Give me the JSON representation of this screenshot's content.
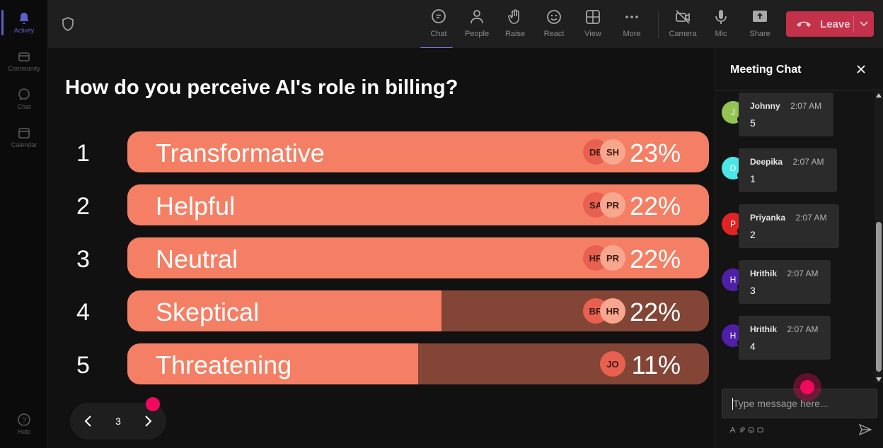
{
  "rail": {
    "items": [
      {
        "label": "Activity",
        "icon": "bell-icon"
      },
      {
        "label": "Community",
        "icon": "community-icon"
      },
      {
        "label": "Chat",
        "icon": "chat-icon"
      },
      {
        "label": "Calendar",
        "icon": "calendar-icon"
      }
    ],
    "help_label": "Help"
  },
  "toolbar": {
    "buttons": [
      {
        "label": "Chat",
        "icon": "chat-icon"
      },
      {
        "label": "People",
        "icon": "people-icon"
      },
      {
        "label": "Raise",
        "icon": "raise-hand-icon"
      },
      {
        "label": "React",
        "icon": "react-icon"
      },
      {
        "label": "View",
        "icon": "view-icon"
      },
      {
        "label": "More",
        "icon": "more-icon"
      },
      {
        "label": "Camera",
        "icon": "camera-off-icon"
      },
      {
        "label": "Mic",
        "icon": "mic-icon"
      },
      {
        "label": "Share",
        "icon": "share-icon"
      }
    ],
    "leave_label": "Leave"
  },
  "poll": {
    "question": "How do you perceive AI's role in billing?",
    "options": [
      {
        "num": "1",
        "label": "Transformative",
        "percent": "23%",
        "fill": 1.0,
        "avatars": [
          "DE",
          "SH"
        ]
      },
      {
        "num": "2",
        "label": "Helpful",
        "percent": "22%",
        "fill": 1.0,
        "avatars": [
          "SA",
          "PR"
        ]
      },
      {
        "num": "3",
        "label": "Neutral",
        "percent": "22%",
        "fill": 1.0,
        "avatars": [
          "HR",
          "PR"
        ]
      },
      {
        "num": "4",
        "label": "Skeptical",
        "percent": "22%",
        "fill": 0.54,
        "avatars": [
          "BR",
          "HR"
        ]
      },
      {
        "num": "5",
        "label": "Threatening",
        "percent": "11%",
        "fill": 0.5,
        "avatars": [
          "JO"
        ]
      }
    ],
    "page": "3"
  },
  "chat": {
    "title": "Meeting Chat",
    "messages": [
      {
        "initial": "J",
        "name": "Johnny",
        "time": "2:07 AM",
        "text": "5",
        "color": "#92c353"
      },
      {
        "initial": "D",
        "name": "Deepika",
        "time": "2:07 AM",
        "text": "1",
        "color": "#4be6e6"
      },
      {
        "initial": "P",
        "name": "Priyanka",
        "time": "2:07 AM",
        "text": "2",
        "color": "#e02424"
      },
      {
        "initial": "H",
        "name": "Hrithik",
        "time": "2:07 AM",
        "text": "3",
        "color": "#4f1fa8"
      },
      {
        "initial": "H",
        "name": "Hrithik",
        "time": "2:07 AM",
        "text": "4",
        "color": "#4f1fa8"
      }
    ],
    "input_placeholder": "Type message here..."
  },
  "colors": {
    "bar_fill": "#f47f65",
    "bar_track": "#834536",
    "leave": "#c4314b",
    "accent": "#5b5fc7",
    "cursor_dot": "#f0095f"
  }
}
